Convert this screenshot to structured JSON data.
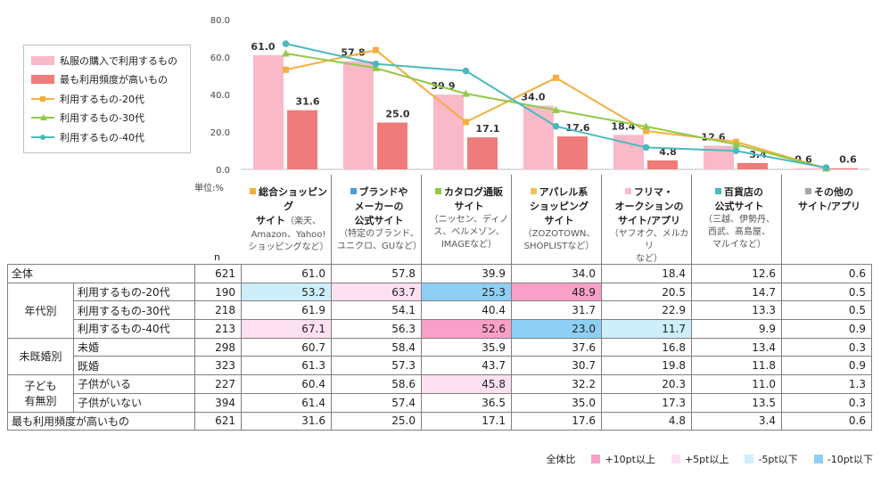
{
  "chart_data": {
    "type": "bar",
    "ylim": [
      0,
      80
    ],
    "yticks": [
      "0.0",
      "20.0",
      "40.0",
      "60.0",
      "80.0"
    ],
    "categories": [
      "総合ショッピングサイト",
      "ブランドやメーカーの公式サイト",
      "カタログ通販サイト",
      "アパレル系ショッピングサイト",
      "フリマ・オークションのサイト/アプリ",
      "百貨店の公式サイト",
      "その他のサイト/アプリ"
    ],
    "series": [
      {
        "name": "私服の購入で利用するもの",
        "kind": "bar",
        "color": "#f9b9c9",
        "values": [
          61.0,
          57.8,
          39.9,
          34.0,
          18.4,
          12.6,
          0.6
        ],
        "labels": [
          "61.0",
          "57.8",
          "39.9",
          "34.0",
          "18.4",
          "12.6",
          "0.6"
        ]
      },
      {
        "name": "最も利用頻度が高いもの",
        "kind": "bar",
        "color": "#f07b7b",
        "values": [
          31.6,
          25.0,
          17.1,
          17.6,
          4.8,
          3.4,
          0.6
        ],
        "labels": [
          "31.6",
          "25.0",
          "17.1",
          "17.6",
          "4.8",
          "3.4",
          "0.6"
        ]
      },
      {
        "name": "利用するもの-20代",
        "kind": "line",
        "color": "#f5ae3d",
        "marker": "square",
        "values": [
          53.2,
          63.7,
          25.3,
          48.9,
          20.5,
          14.7,
          0.5
        ]
      },
      {
        "name": "利用するもの-30代",
        "kind": "line",
        "color": "#92c94a",
        "marker": "triangle",
        "values": [
          61.9,
          54.1,
          40.4,
          31.7,
          22.9,
          13.3,
          0.5
        ]
      },
      {
        "name": "利用するもの-40代",
        "kind": "line",
        "color": "#4ab9bf",
        "marker": "circle",
        "values": [
          67.1,
          56.3,
          52.6,
          23.0,
          11.7,
          9.9,
          0.9
        ]
      }
    ]
  },
  "unit": "単位:%",
  "n_header": "n",
  "categories": [
    {
      "color": "#f5ae3d",
      "title": [
        "総合ショッピング",
        "サイト"
      ],
      "title_suffix": "（楽天、",
      "sub": [
        "Amazon、Yahoo!",
        "ショッピングなど）"
      ]
    },
    {
      "color": "#4a9fd8",
      "title": [
        "ブランドや",
        "メーカーの",
        "公式サイト"
      ],
      "title_suffix": "",
      "sub": [
        "（特定のブランド、",
        "ユニクロ、GUなど）"
      ]
    },
    {
      "color": "#92c94a",
      "title": [
        "カタログ通販",
        "サイト"
      ],
      "title_suffix": "",
      "sub": [
        "（ニッセン、ディノ",
        "ス、ベルメゾン、",
        "IMAGEなど）"
      ]
    },
    {
      "color": "#f5c15c",
      "title": [
        "アパレル系",
        "ショッピング",
        "サイト"
      ],
      "title_suffix": "",
      "sub": [
        "（ZOZOTOWN、",
        "SHOPLISTなど）"
      ]
    },
    {
      "color": "#f9b9c9",
      "title": [
        "フリマ・",
        "オークションの",
        "サイト/アプリ"
      ],
      "title_suffix": "",
      "sub": [
        "（ヤフオク、メルカリ",
        "など）"
      ]
    },
    {
      "color": "#4ab9bf",
      "title": [
        "百貨店の",
        "公式サイト"
      ],
      "title_suffix": "",
      "sub": [
        "（三越、伊勢丹、",
        "西武、髙島屋、",
        "マルイなど）"
      ]
    },
    {
      "color": "#a6a6a6",
      "title": [
        "その他の",
        "サイト/アプリ"
      ],
      "title_suffix": "",
      "sub": []
    }
  ],
  "table": {
    "rows": [
      {
        "group": "全体",
        "label": "",
        "n": "621",
        "values": [
          "61.0",
          "57.8",
          "39.9",
          "34.0",
          "18.4",
          "12.6",
          "0.6"
        ],
        "hl": [
          "",
          "",
          "",
          "",
          "",
          "",
          ""
        ]
      },
      {
        "group": "年代別",
        "label": "利用するもの-20代",
        "n": "190",
        "values": [
          "53.2",
          "63.7",
          "25.3",
          "48.9",
          "20.5",
          "14.7",
          "0.5"
        ],
        "hl": [
          "m5",
          "p5",
          "m10",
          "p10",
          "",
          "",
          ""
        ]
      },
      {
        "group": "",
        "label": "利用するもの-30代",
        "n": "218",
        "values": [
          "61.9",
          "54.1",
          "40.4",
          "31.7",
          "22.9",
          "13.3",
          "0.5"
        ],
        "hl": [
          "",
          "",
          "",
          "",
          "",
          "",
          ""
        ]
      },
      {
        "group": "",
        "label": "利用するもの-40代",
        "n": "213",
        "values": [
          "67.1",
          "56.3",
          "52.6",
          "23.0",
          "11.7",
          "9.9",
          "0.9"
        ],
        "hl": [
          "p5",
          "",
          "p10",
          "m10",
          "m5",
          "",
          ""
        ]
      },
      {
        "group": "未既婚別",
        "label": "未婚",
        "n": "298",
        "values": [
          "60.7",
          "58.4",
          "35.9",
          "37.6",
          "16.8",
          "13.4",
          "0.3"
        ],
        "hl": [
          "",
          "",
          "",
          "",
          "",
          "",
          ""
        ]
      },
      {
        "group": "",
        "label": "既婚",
        "n": "323",
        "values": [
          "61.3",
          "57.3",
          "43.7",
          "30.7",
          "19.8",
          "11.8",
          "0.9"
        ],
        "hl": [
          "",
          "",
          "",
          "",
          "",
          "",
          ""
        ]
      },
      {
        "group": "子ども有無別",
        "group_lines": [
          "子ども",
          "有無別"
        ],
        "label": "子供がいる",
        "n": "227",
        "values": [
          "60.4",
          "58.6",
          "45.8",
          "32.2",
          "20.3",
          "11.0",
          "1.3"
        ],
        "hl": [
          "",
          "",
          "p5",
          "",
          "",
          "",
          ""
        ]
      },
      {
        "group": "",
        "label": "子供がいない",
        "n": "394",
        "values": [
          "61.4",
          "57.4",
          "36.5",
          "35.0",
          "17.3",
          "13.5",
          "0.3"
        ],
        "hl": [
          "",
          "",
          "",
          "",
          "",
          "",
          ""
        ]
      },
      {
        "group": "最も利用頻度が高いもの",
        "label": "",
        "n": "621",
        "values": [
          "31.6",
          "25.0",
          "17.1",
          "17.6",
          "4.8",
          "3.4",
          "0.6"
        ],
        "hl": [
          "",
          "",
          "",
          "",
          "",
          "",
          ""
        ]
      }
    ]
  },
  "comparison": {
    "label": "全体比",
    "items": [
      {
        "key": "p10",
        "label": "+10pt以上",
        "color": "#f9a0c8"
      },
      {
        "key": "p5",
        "label": "+5pt以上",
        "color": "#fde0f2"
      },
      {
        "key": "m5",
        "label": "-5pt以下",
        "color": "#cdeefa"
      },
      {
        "key": "m10",
        "label": "-10pt以下",
        "color": "#8fcff5"
      }
    ]
  }
}
